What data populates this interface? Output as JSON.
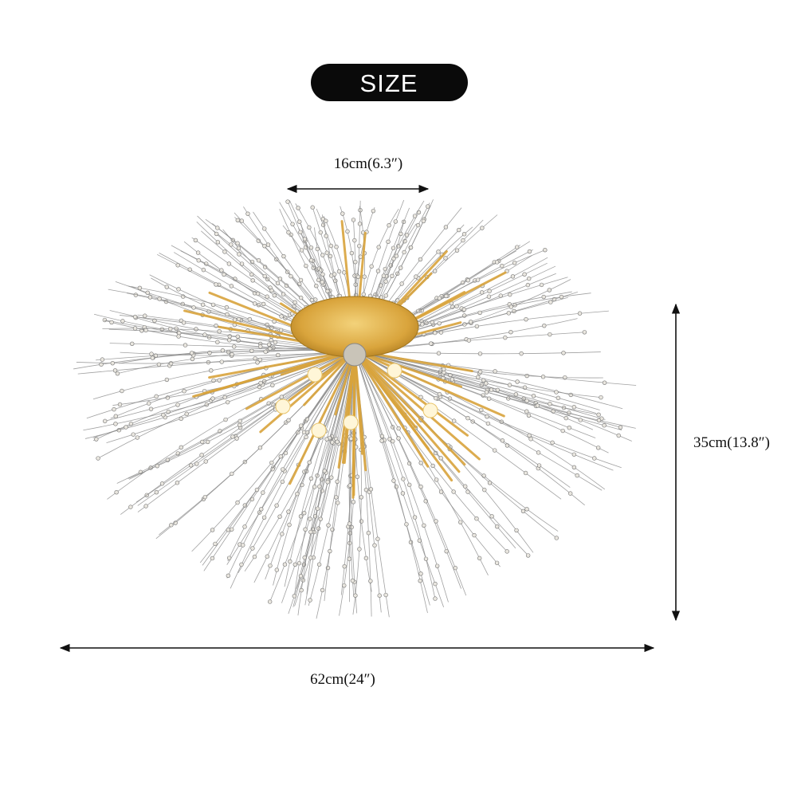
{
  "title": "SIZE",
  "dimensions": {
    "top": "16cm(6.3″)",
    "right": "35cm(13.8″)",
    "bottom": "62cm(24″)"
  }
}
